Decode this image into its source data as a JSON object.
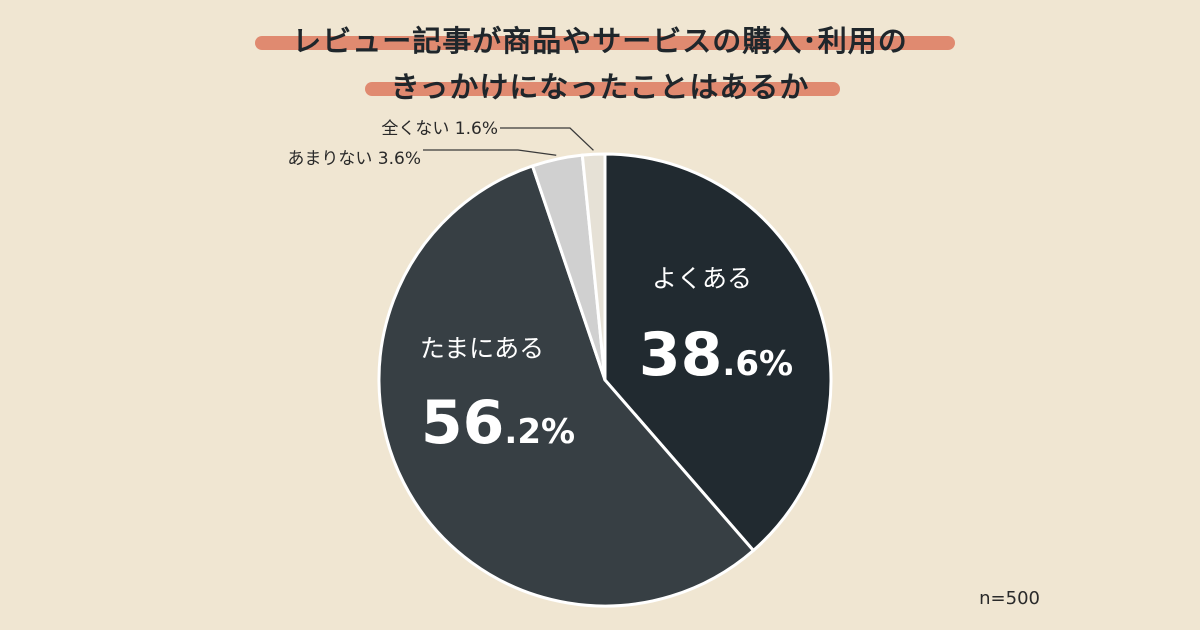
{
  "title": {
    "line1": "レビュー記事が商品やサービスの購入･利用の",
    "line2": "きっかけになったことはあるか"
  },
  "note": "n=500",
  "chart_data": {
    "type": "pie",
    "slices": [
      {
        "label": "よくある",
        "value": 38.6,
        "int_part": "38",
        "dec_part": ".6%",
        "color": "#212a30"
      },
      {
        "label": "たまにある",
        "value": 56.2,
        "int_part": "56",
        "dec_part": ".2%",
        "color": "#373f44"
      },
      {
        "label": "あまりない",
        "value": 3.6,
        "callout": "あまりない 3.6%",
        "color": "#d0d0d0"
      },
      {
        "label": "全くない",
        "value": 1.6,
        "callout": "全くない 1.6%",
        "color": "#e6e1d6"
      }
    ]
  }
}
